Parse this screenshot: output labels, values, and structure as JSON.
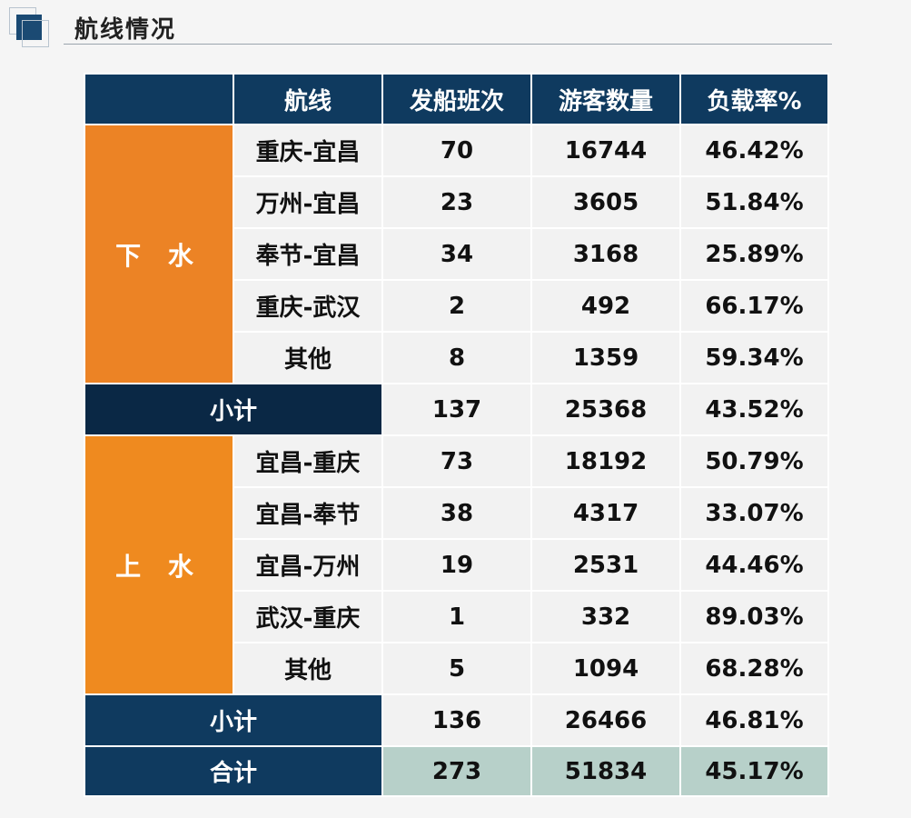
{
  "header": {
    "title": "航线情况"
  },
  "table": {
    "columns": [
      "",
      "航线",
      "发船班次",
      "游客数量",
      "负载率%"
    ],
    "groups": [
      {
        "label": "下 水",
        "rows": [
          {
            "route": "重庆-宜昌",
            "trips": "70",
            "passengers": "16744",
            "load": "46.42%"
          },
          {
            "route": "万州-宜昌",
            "trips": "23",
            "passengers": "3605",
            "load": "51.84%"
          },
          {
            "route": "奉节-宜昌",
            "trips": "34",
            "passengers": "3168",
            "load": "25.89%"
          },
          {
            "route": "重庆-武汉",
            "trips": "2",
            "passengers": "492",
            "load": "66.17%"
          },
          {
            "route": "其他",
            "trips": "8",
            "passengers": "1359",
            "load": "59.34%"
          }
        ],
        "subtotal": {
          "label": "小计",
          "trips": "137",
          "passengers": "25368",
          "load": "43.52%"
        }
      },
      {
        "label": "上 水",
        "rows": [
          {
            "route": "宜昌-重庆",
            "trips": "73",
            "passengers": "18192",
            "load": "50.79%"
          },
          {
            "route": "宜昌-奉节",
            "trips": "38",
            "passengers": "4317",
            "load": "33.07%"
          },
          {
            "route": "宜昌-万州",
            "trips": "19",
            "passengers": "2531",
            "load": "44.46%"
          },
          {
            "route": "武汉-重庆",
            "trips": "1",
            "passengers": "332",
            "load": "89.03%"
          },
          {
            "route": "其他",
            "trips": "5",
            "passengers": "1094",
            "load": "68.28%"
          }
        ],
        "subtotal": {
          "label": "小计",
          "trips": "136",
          "passengers": "26466",
          "load": "46.81%"
        }
      }
    ],
    "total": {
      "label": "合计",
      "trips": "273",
      "passengers": "51834",
      "load": "45.17%"
    }
  },
  "colors": {
    "header_bg": "#0f3a5f",
    "group_bg": "#ec8325",
    "cell_bg": "#f2f2f2",
    "total_bg": "#b7d0c9"
  }
}
